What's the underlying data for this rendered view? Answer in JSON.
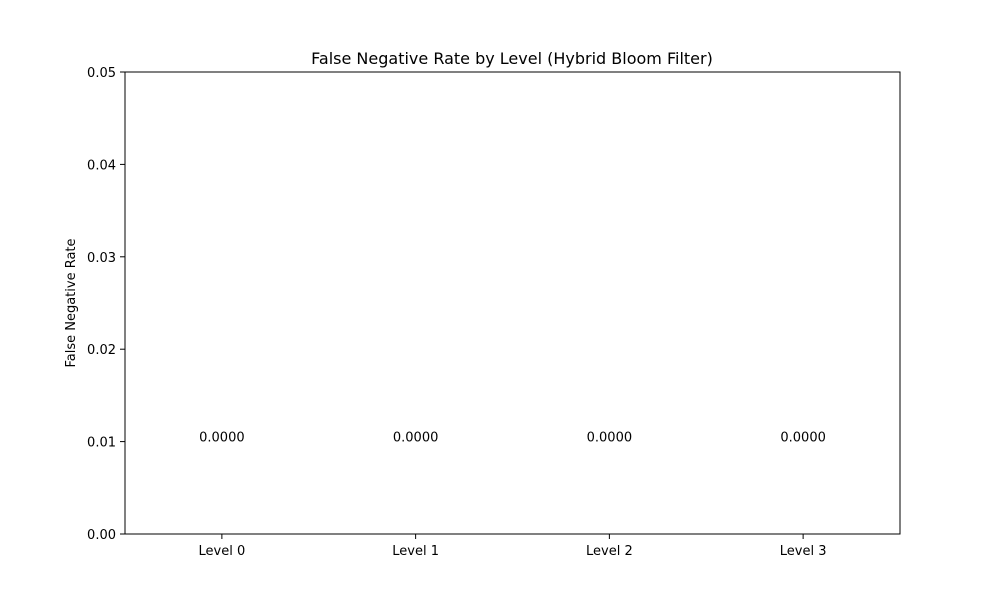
{
  "chart_data": {
    "type": "bar",
    "title": "False Negative Rate by Level (Hybrid Bloom Filter)",
    "xlabel": "",
    "ylabel": "False Negative Rate",
    "categories": [
      "Level 0",
      "Level 1",
      "Level 2",
      "Level 3"
    ],
    "values": [
      0.0,
      0.0,
      0.0,
      0.0
    ],
    "data_labels": [
      "0.0000",
      "0.0000",
      "0.0000",
      "0.0000"
    ],
    "ylim": [
      0,
      0.05
    ],
    "yticks": [
      0.0,
      0.01,
      0.02,
      0.03,
      0.04,
      0.05
    ],
    "ytick_labels": [
      "0.00",
      "0.01",
      "0.02",
      "0.03",
      "0.04",
      "0.05"
    ],
    "grid": false,
    "bar_color": "#1f77b4"
  }
}
